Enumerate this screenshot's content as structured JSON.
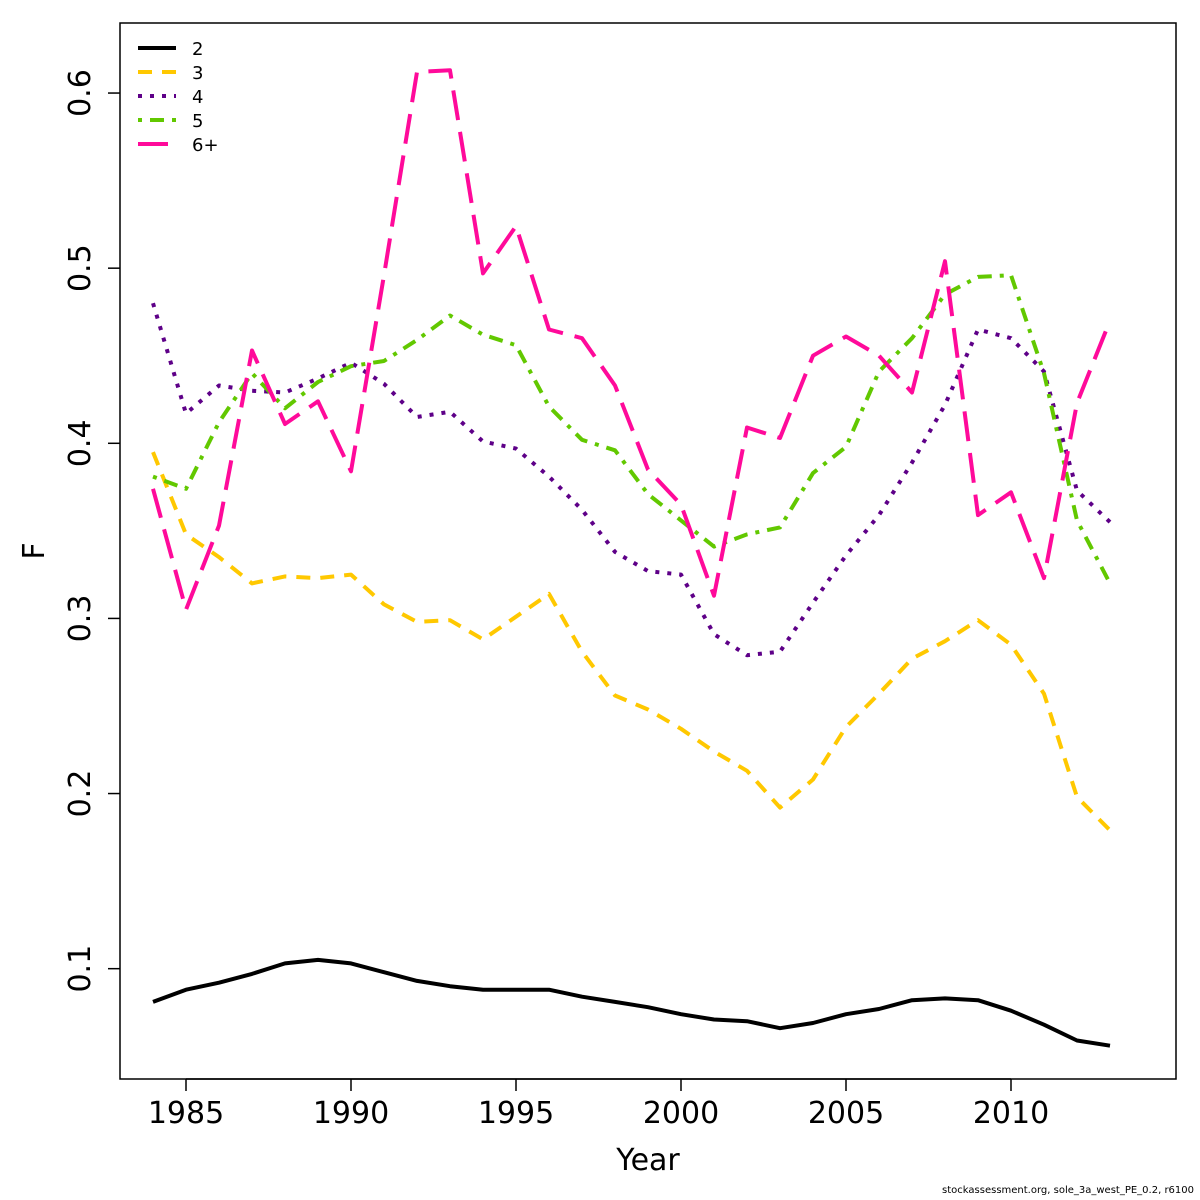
{
  "chart_data": {
    "type": "line",
    "xlabel": "Year",
    "ylabel": "F",
    "xlim": [
      1983,
      2015
    ],
    "ylim": [
      0.037,
      0.64
    ],
    "xticks": [
      1985,
      1990,
      1995,
      2000,
      2005,
      2010
    ],
    "yticks": [
      0.1,
      0.2,
      0.3,
      0.4,
      0.5,
      0.6
    ],
    "legend_position": "top-left",
    "x": [
      1984,
      1985,
      1986,
      1987,
      1988,
      1989,
      1990,
      1991,
      1992,
      1993,
      1994,
      1995,
      1996,
      1997,
      1998,
      1999,
      2000,
      2001,
      2002,
      2003,
      2004,
      2005,
      2006,
      2007,
      2008,
      2009,
      2010,
      2011,
      2012,
      2013
    ],
    "series": [
      {
        "name": "2",
        "color": "#000000",
        "dash": "solid",
        "values": [
          0.081,
          0.088,
          0.092,
          0.097,
          0.103,
          0.105,
          0.103,
          0.098,
          0.093,
          0.09,
          0.088,
          0.088,
          0.088,
          0.084,
          0.081,
          0.078,
          0.074,
          0.071,
          0.07,
          0.066,
          0.069,
          0.074,
          0.077,
          0.082,
          0.083,
          0.082,
          0.076,
          0.068,
          0.059,
          0.056
        ]
      },
      {
        "name": "3",
        "color": "#ffc800",
        "dash": "dashed",
        "values": [
          0.395,
          0.348,
          0.335,
          0.32,
          0.324,
          0.323,
          0.325,
          0.308,
          0.298,
          0.299,
          0.288,
          0.301,
          0.314,
          0.281,
          0.256,
          0.248,
          0.237,
          0.224,
          0.213,
          0.192,
          0.208,
          0.238,
          0.257,
          0.277,
          0.287,
          0.299,
          0.285,
          0.257,
          0.198,
          0.179
        ]
      },
      {
        "name": "4",
        "color": "#5e0088",
        "dash": "dotted",
        "values": [
          0.48,
          0.417,
          0.433,
          0.43,
          0.429,
          0.437,
          0.446,
          0.434,
          0.415,
          0.418,
          0.401,
          0.397,
          0.381,
          0.362,
          0.338,
          0.327,
          0.325,
          0.291,
          0.279,
          0.281,
          0.309,
          0.336,
          0.359,
          0.389,
          0.422,
          0.465,
          0.46,
          0.441,
          0.373,
          0.355
        ]
      },
      {
        "name": "5",
        "color": "#62c800",
        "dash": "dotdash",
        "values": [
          0.381,
          0.374,
          0.412,
          0.44,
          0.42,
          0.435,
          0.444,
          0.447,
          0.459,
          0.473,
          0.462,
          0.456,
          0.421,
          0.402,
          0.396,
          0.371,
          0.356,
          0.341,
          0.348,
          0.352,
          0.383,
          0.398,
          0.441,
          0.46,
          0.485,
          0.495,
          0.496,
          0.44,
          0.356,
          0.32
        ]
      },
      {
        "name": "6+",
        "color": "#ff0a9a",
        "dash": "longdash",
        "values": [
          0.374,
          0.305,
          0.353,
          0.453,
          0.411,
          0.424,
          0.384,
          0.496,
          0.612,
          0.613,
          0.497,
          0.524,
          0.465,
          0.46,
          0.433,
          0.385,
          0.365,
          0.313,
          0.409,
          0.403,
          0.45,
          0.461,
          0.45,
          0.429,
          0.504,
          0.359,
          0.372,
          0.323,
          0.423,
          0.47
        ]
      }
    ]
  },
  "footer": "stockassessment.org, sole_3a_west_PE_0.2, r6100"
}
